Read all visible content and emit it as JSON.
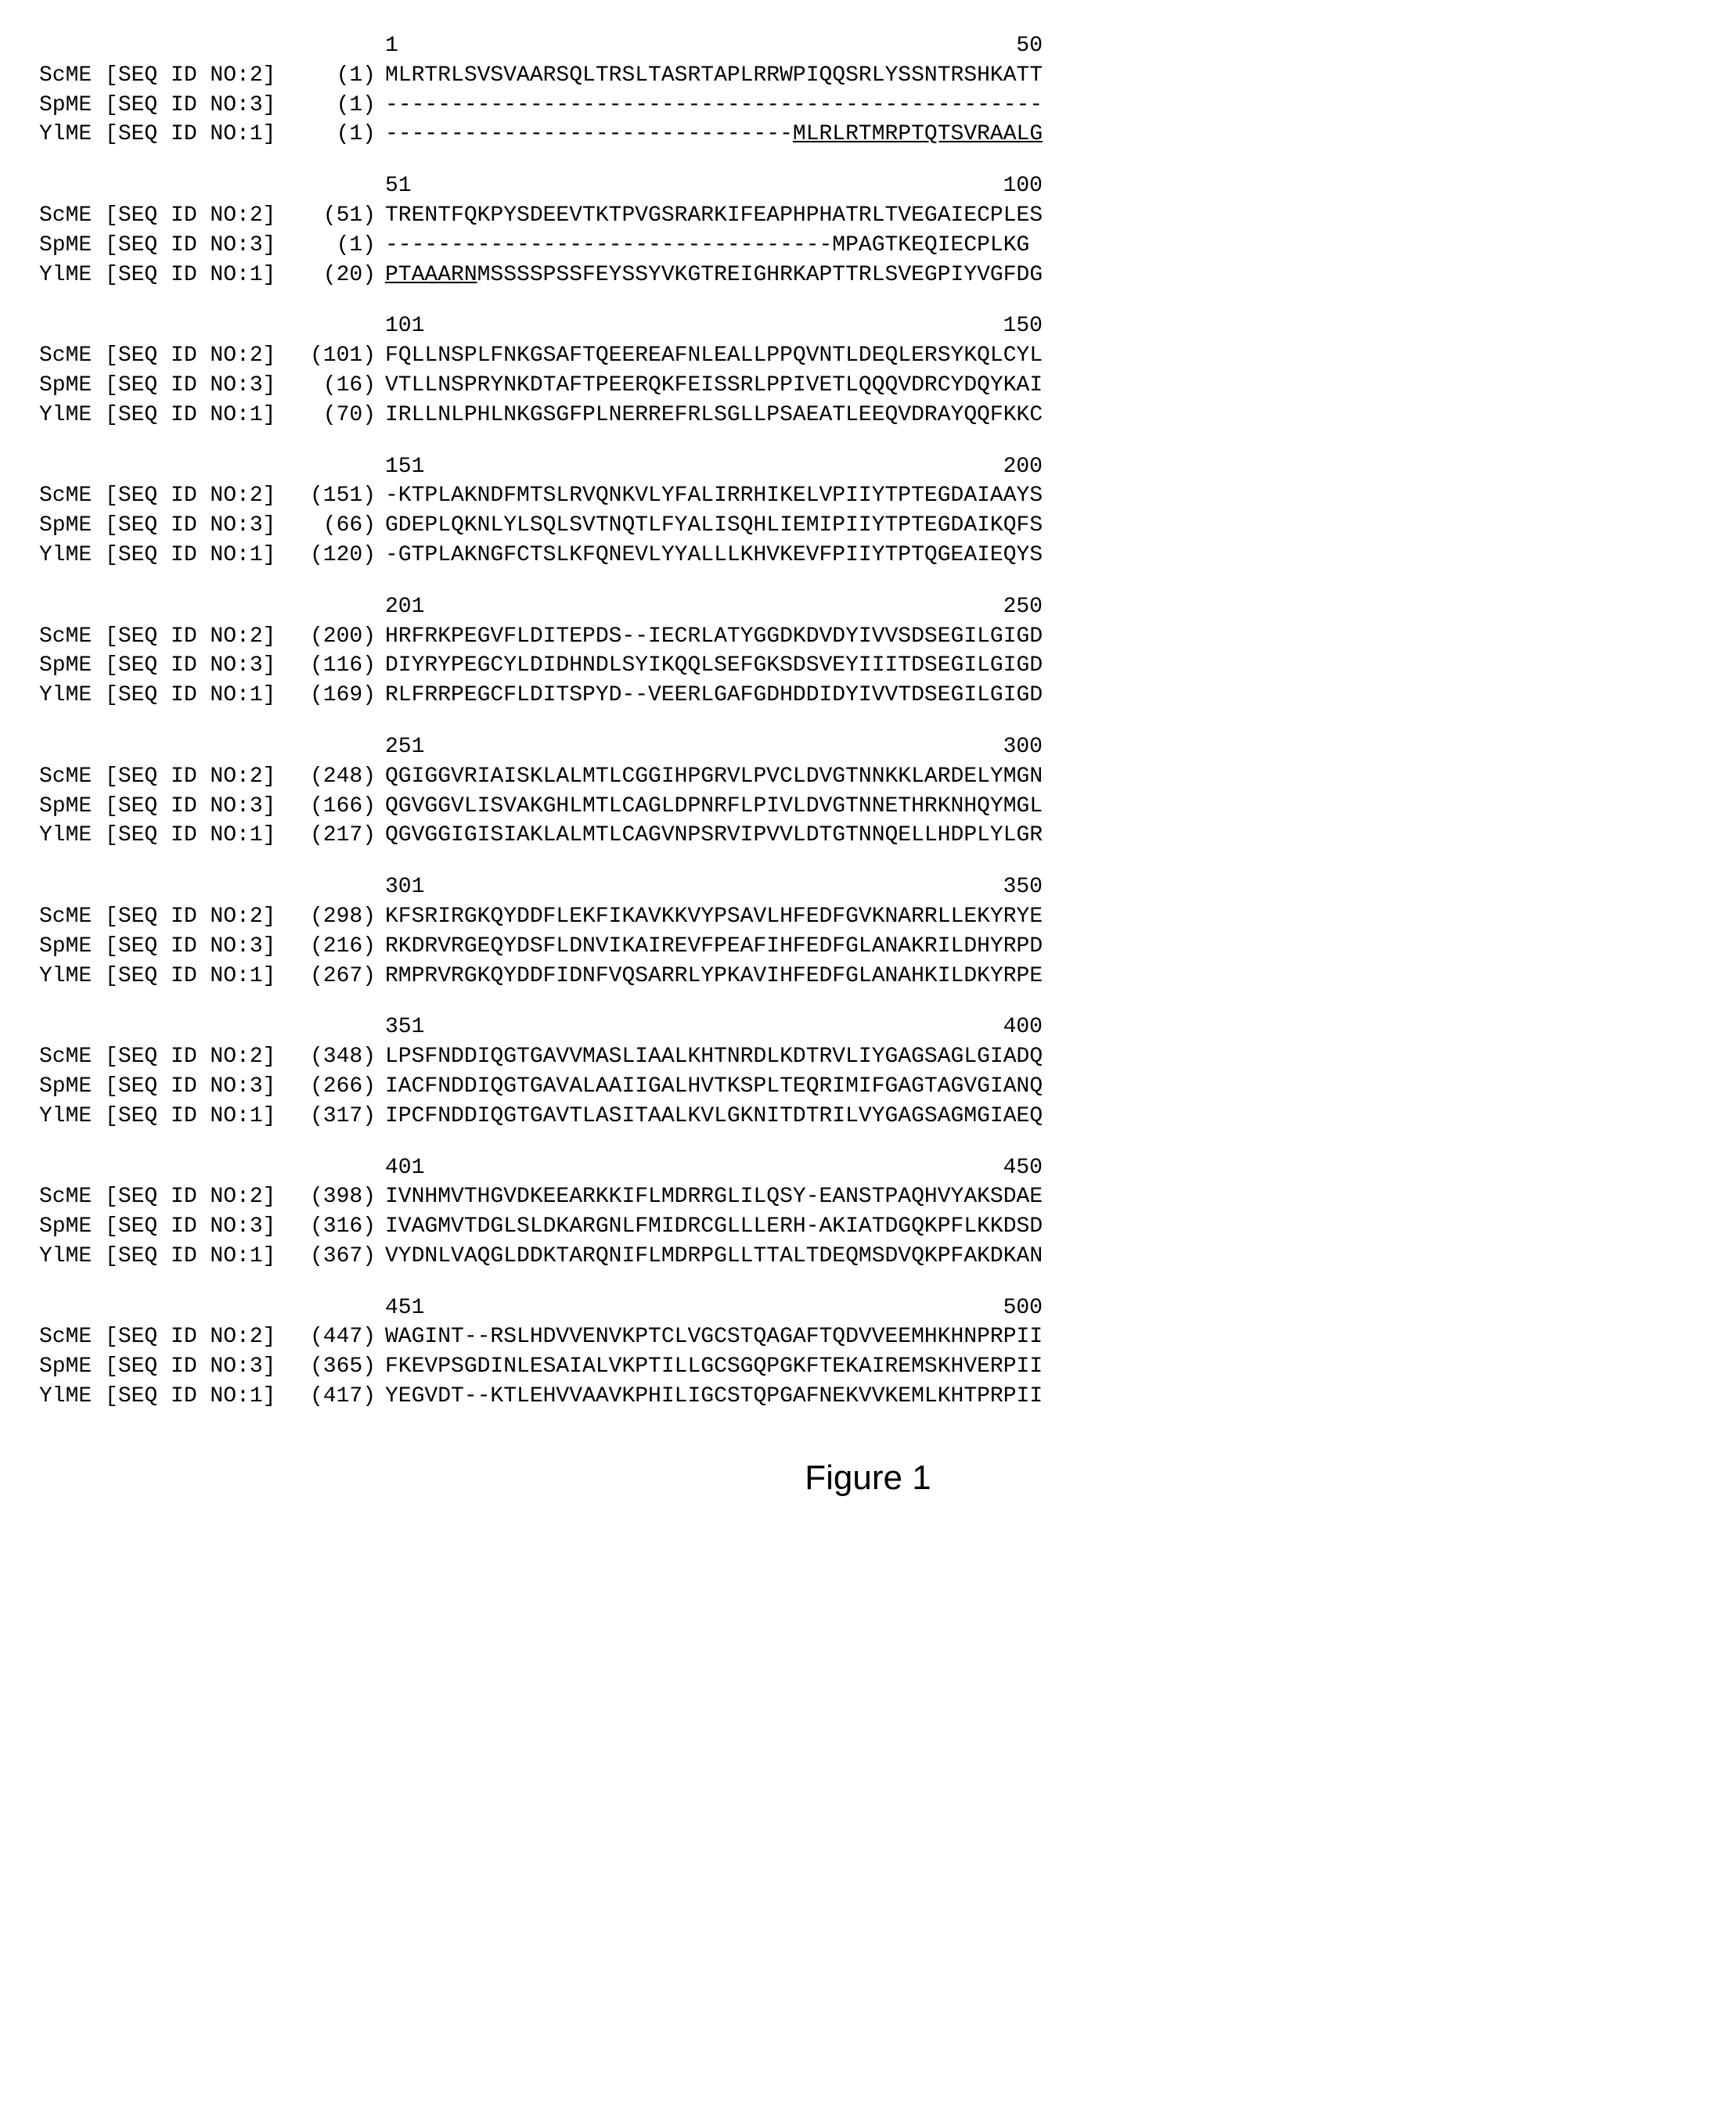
{
  "labels": {
    "sc": "ScME [SEQ ID NO:2]",
    "sp": "SpME [SEQ ID NO:3]",
    "yl": "YlME [SEQ ID NO:1]"
  },
  "blocks": [
    {
      "ruler": {
        "start": "1",
        "end": "50"
      },
      "rows": [
        {
          "label": "sc",
          "pos": "(1)",
          "seq": "MLRTRLSVSVAARSQLTRSLTASRTAPLRRWPIQQSRLYSSNTRSHKATT"
        },
        {
          "label": "sp",
          "pos": "(1)",
          "seq": "--------------------------------------------------"
        },
        {
          "label": "yl",
          "pos": "(1)",
          "seq_pre": "-------------------------------",
          "seq_ul": "MLRLRTMRPTQTSVRAALG"
        }
      ]
    },
    {
      "ruler": {
        "start": "51",
        "end": "100"
      },
      "rows": [
        {
          "label": "sc",
          "pos": "(51)",
          "seq": "TRENTFQKPYSDEEVTKTPVGSRARKIFEAPHPHATRLTVEGAIECPLES"
        },
        {
          "label": "sp",
          "pos": "(1)",
          "seq": "----------------------------------MPAGTKEQIECPLKG"
        },
        {
          "label": "yl",
          "pos": "(20)",
          "seq_ul": "PTAAARN",
          "seq_post": "MSSSSPSSFEYSSYVKGTREIGHRKAPTTRLSVEGPIYVGFDG"
        }
      ]
    },
    {
      "ruler": {
        "start": "101",
        "end": "150"
      },
      "rows": [
        {
          "label": "sc",
          "pos": "(101)",
          "seq": "FQLLNSPLFNKGSAFTQEEREAFNLEALLPPQVNTLDEQLERSYKQLCYL"
        },
        {
          "label": "sp",
          "pos": "(16)",
          "seq": "VTLLNSPRYNKDTAFTPEERQKFEISSRLPPIVETLQQQVDRCYDQYKAI"
        },
        {
          "label": "yl",
          "pos": "(70)",
          "seq": "IRLLNLPHLNKGSGFPLNERREFRLSGLLPSAEATLEEQVDRAYQQFKKC"
        }
      ]
    },
    {
      "ruler": {
        "start": "151",
        "end": "200"
      },
      "rows": [
        {
          "label": "sc",
          "pos": "(151)",
          "seq": "-KTPLAKNDFMTSLRVQNKVLYFALIRRHIKELVPIIYTPTEGDAIAAYS"
        },
        {
          "label": "sp",
          "pos": "(66)",
          "seq": "GDEPLQKNLYLSQLSVTNQTLFYALISQHLIEMIPIIYTPTEGDAIKQFS"
        },
        {
          "label": "yl",
          "pos": "(120)",
          "seq": "-GTPLAKNGFCTSLKFQNEVLYYALLLKHVKEVFPIIYTPTQGEAIEQYS"
        }
      ]
    },
    {
      "ruler": {
        "start": "201",
        "end": "250"
      },
      "rows": [
        {
          "label": "sc",
          "pos": "(200)",
          "seq": "HRFRKPEGVFLDITEPDS--IECRLATYGGDKDVDYIVVSDSEGILGIGD"
        },
        {
          "label": "sp",
          "pos": "(116)",
          "seq": "DIYRYPEGCYLDIDHNDLSYIKQQLSEFGKSDSVEYIIITDSEGILGIGD"
        },
        {
          "label": "yl",
          "pos": "(169)",
          "seq": "RLFRRPEGCFLDITSPYD--VEERLGAFGDHDDIDYIVVTDSEGILGIGD"
        }
      ]
    },
    {
      "ruler": {
        "start": "251",
        "end": "300"
      },
      "rows": [
        {
          "label": "sc",
          "pos": "(248)",
          "seq": "QGIGGVRIAISKLALMTLCGGIHPGRVLPVCLDVGTNNKKLARDELYMGN"
        },
        {
          "label": "sp",
          "pos": "(166)",
          "seq": "QGVGGVLISVAKGHLMTLCAGLDPNRFLPIVLDVGTNNETHRKNHQYMGL"
        },
        {
          "label": "yl",
          "pos": "(217)",
          "seq": "QGVGGIGISIAKLALMTLCAGVNPSRVIPVVLDTGTNNQELLHDPLYLGR"
        }
      ]
    },
    {
      "ruler": {
        "start": "301",
        "end": "350"
      },
      "rows": [
        {
          "label": "sc",
          "pos": "(298)",
          "seq": "KFSRIRGKQYDDFLEKFIKAVKKVYPSAVLHFEDFGVKNARRLLEKYRYE"
        },
        {
          "label": "sp",
          "pos": "(216)",
          "seq": "RKDRVRGEQYDSFLDNVIKAIREVFPEAFIHFEDFGLANAKRILDHYRPD"
        },
        {
          "label": "yl",
          "pos": "(267)",
          "seq": "RMPRVRGKQYDDFIDNFVQSARRLYPKAVIHFEDFGLANAHKILDKYRPE"
        }
      ]
    },
    {
      "ruler": {
        "start": "351",
        "end": "400"
      },
      "rows": [
        {
          "label": "sc",
          "pos": "(348)",
          "seq": "LPSFNDDIQGTGAVVMASLIAALKHTNRDLKDTRVLIYGAGSAGLGIADQ"
        },
        {
          "label": "sp",
          "pos": "(266)",
          "seq": "IACFNDDIQGTGAVALAAIIGALHVTKSPLTEQRIMIFGAGTAGVGIANQ"
        },
        {
          "label": "yl",
          "pos": "(317)",
          "seq": "IPCFNDDIQGTGAVTLASITAALKVLGKNITDTRILVYGAGSAGMGIAEQ"
        }
      ]
    },
    {
      "ruler": {
        "start": "401",
        "end": "450"
      },
      "rows": [
        {
          "label": "sc",
          "pos": "(398)",
          "seq": "IVNHMVTHGVDKEEARKKIFLMDRRGLILQSY-EANSTPAQHVYAKSDAE"
        },
        {
          "label": "sp",
          "pos": "(316)",
          "seq": "IVAGMVTDGLSLDKARGNLFMIDRCGLLLERH-AKIATDGQKPFLKKDSD"
        },
        {
          "label": "yl",
          "pos": "(367)",
          "seq": "VYDNLVAQGLDDKTARQNIFLMDRPGLLTTALTDEQMSDVQKPFAKDKAN"
        }
      ]
    },
    {
      "ruler": {
        "start": "451",
        "end": "500"
      },
      "rows": [
        {
          "label": "sc",
          "pos": "(447)",
          "seq": "WAGINT--RSLHDVVENVKPTCLVGCSTQAGAFTQDVVEEMHKHNPRPII"
        },
        {
          "label": "sp",
          "pos": "(365)",
          "seq": "FKEVPSGDINLESAIALVKPTILLGCSGQPGKFTEKAIREMSKHVERPII"
        },
        {
          "label": "yl",
          "pos": "(417)",
          "seq": "YEGVDT--KTLEHVVAAVKPHILIGCSTQPGAFNEKVVKEMLKHTPRPII"
        }
      ]
    }
  ],
  "caption": "Figure 1"
}
